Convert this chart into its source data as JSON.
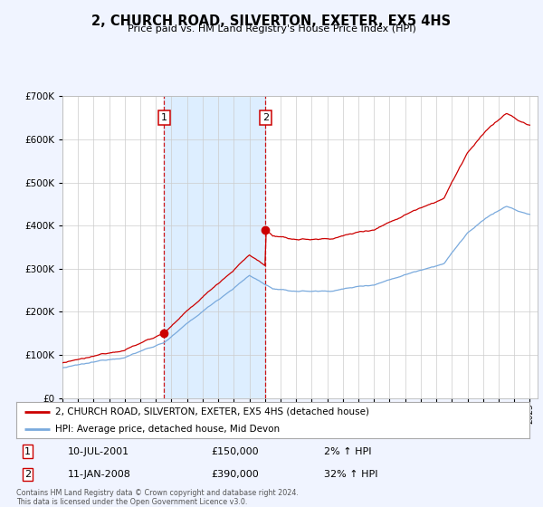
{
  "title": "2, CHURCH ROAD, SILVERTON, EXETER, EX5 4HS",
  "subtitle": "Price paid vs. HM Land Registry's House Price Index (HPI)",
  "background_color": "#f0f4ff",
  "plot_bg_color": "#ffffff",
  "ylim": [
    0,
    700000
  ],
  "yticks": [
    0,
    100000,
    200000,
    300000,
    400000,
    500000,
    600000,
    700000
  ],
  "year_start": 1995,
  "year_end": 2025,
  "purchase1": {
    "date": "10-JUL-2001",
    "price": 150000,
    "hpi_pct": 2,
    "label": "1"
  },
  "purchase2": {
    "date": "11-JAN-2008",
    "price": 390000,
    "hpi_pct": 32,
    "label": "2"
  },
  "purchase1_year": 2001.53,
  "purchase2_year": 2008.04,
  "legend_house": "2, CHURCH ROAD, SILVERTON, EXETER, EX5 4HS (detached house)",
  "legend_hpi": "HPI: Average price, detached house, Mid Devon",
  "footer": "Contains HM Land Registry data © Crown copyright and database right 2024.\nThis data is licensed under the Open Government Licence v3.0.",
  "line_color_house": "#cc0000",
  "line_color_hpi": "#7aaadd",
  "vline_color": "#cc0000",
  "span_color": "#ddeeff",
  "marker_color": "#cc0000",
  "box_label_color": "#cc0000"
}
